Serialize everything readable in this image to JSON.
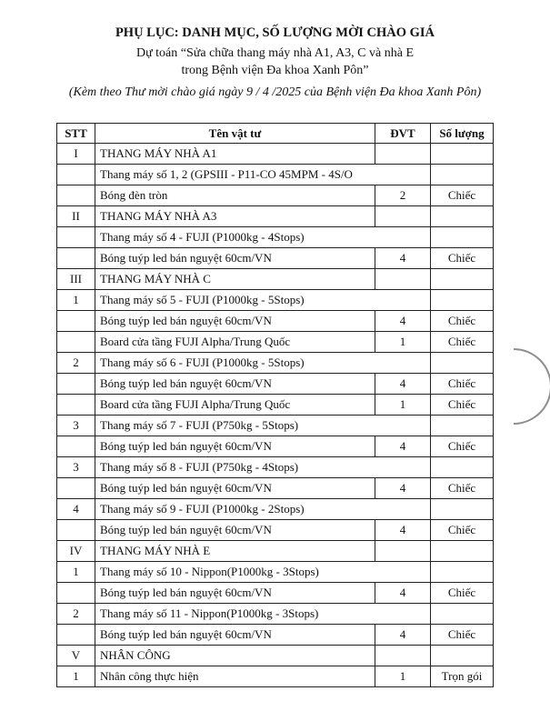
{
  "title": "PHỤ LỤC: DANH MỤC, SỐ LƯỢNG MỜI CHÀO GIÁ",
  "subtitle_line1": "Dự toán “Sửa chữa thang máy nhà A1, A3, C và nhà E",
  "subtitle_line2": "trong Bệnh viện Đa khoa Xanh Pôn”",
  "note": "(Kèm theo Thư mời chào giá ngày 9 / 4 /2025 của Bệnh viện Đa khoa Xanh Pôn)",
  "table": {
    "headers": [
      "STT",
      "Tên vật tư",
      "ĐVT",
      "Số lượng"
    ],
    "rows": [
      {
        "type": "section",
        "stt": "I",
        "name": "THANG MÁY NHÀ A1"
      },
      {
        "type": "model",
        "stt": "",
        "name": "Thang máy số 1, 2 (GPSIII - P11-CO 45MPM - 4S/O"
      },
      {
        "type": "item",
        "stt": "",
        "name": "Bóng đèn tròn",
        "dvt": "2",
        "sl": "Chiếc"
      },
      {
        "type": "section",
        "stt": "II",
        "name": "THANG MÁY NHÀ A3"
      },
      {
        "type": "model",
        "stt": "",
        "name": "Thang máy số 4 - FUJI (P1000kg - 4Stops)"
      },
      {
        "type": "item",
        "stt": "",
        "name": "Bóng tuýp led bán nguyệt 60cm/VN",
        "dvt": "4",
        "sl": "Chiếc"
      },
      {
        "type": "section",
        "stt": "III",
        "name": "THANG MÁY NHÀ C"
      },
      {
        "type": "model",
        "stt": "1",
        "name": "Thang máy số 5 - FUJI (P1000kg - 5Stops)"
      },
      {
        "type": "item",
        "stt": "",
        "name": "Bóng tuýp led bán nguyệt 60cm/VN",
        "dvt": "4",
        "sl": "Chiếc"
      },
      {
        "type": "item",
        "stt": "",
        "name": "Board cửa tầng FUJI Alpha/Trung Quốc",
        "dvt": "1",
        "sl": "Chiếc"
      },
      {
        "type": "model",
        "stt": "2",
        "name": "Thang máy số 6 - FUJI (P1000kg - 5Stops)"
      },
      {
        "type": "item",
        "stt": "",
        "name": "Bóng tuýp led bán nguyệt 60cm/VN",
        "dvt": "4",
        "sl": "Chiếc"
      },
      {
        "type": "item",
        "stt": "",
        "name": "Board cửa tầng FUJI Alpha/Trung Quốc",
        "dvt": "1",
        "sl": "Chiếc"
      },
      {
        "type": "model",
        "stt": "3",
        "name": "Thang máy số 7 - FUJI (P750kg - 5Stops)"
      },
      {
        "type": "item",
        "stt": "",
        "name": "Bóng tuýp led bán nguyệt 60cm/VN",
        "dvt": "4",
        "sl": "Chiếc"
      },
      {
        "type": "model",
        "stt": "3",
        "name": "Thang máy số 8 - FUJI (P750kg - 4Stops)"
      },
      {
        "type": "item",
        "stt": "",
        "name": "Bóng tuýp led bán nguyệt 60cm/VN",
        "dvt": "4",
        "sl": "Chiếc"
      },
      {
        "type": "model",
        "stt": "4",
        "name": "Thang máy số 9 - FUJI (P1000kg - 2Stops)"
      },
      {
        "type": "item",
        "stt": "",
        "name": "Bóng tuýp led bán nguyệt 60cm/VN",
        "dvt": "4",
        "sl": "Chiếc"
      },
      {
        "type": "section",
        "stt": "IV",
        "name": "THANG MÁY NHÀ E"
      },
      {
        "type": "model",
        "stt": "1",
        "name": "Thang máy số 10 - Nippon(P1000kg - 3Stops)"
      },
      {
        "type": "item",
        "stt": "",
        "name": "Bóng tuýp led bán nguyệt 60cm/VN",
        "dvt": "4",
        "sl": "Chiếc"
      },
      {
        "type": "model",
        "stt": "2",
        "name": "Thang máy số 11 - Nippon(P1000kg - 3Stops)"
      },
      {
        "type": "item",
        "stt": "",
        "name": "Bóng tuýp led bán nguyệt 60cm/VN",
        "dvt": "4",
        "sl": "Chiếc"
      },
      {
        "type": "section",
        "stt": "V",
        "name": "NHÂN CÔNG"
      },
      {
        "type": "item",
        "stt": "1",
        "name": "Nhân công thực hiện",
        "dvt": "1",
        "sl": "Trọn gói"
      }
    ]
  }
}
